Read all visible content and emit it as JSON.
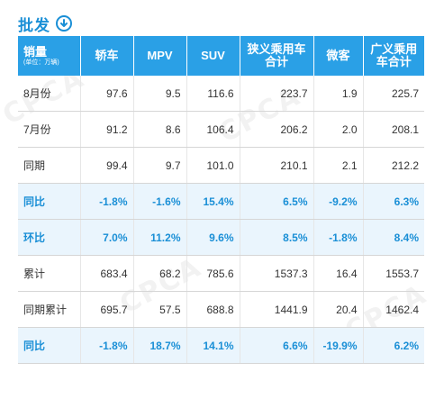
{
  "title": "批发",
  "watermark": "CPCA",
  "headers": [
    {
      "main": "销量",
      "unit": "(单位：万辆)"
    },
    {
      "main": "轿车"
    },
    {
      "main": "MPV"
    },
    {
      "main": "SUV"
    },
    {
      "main": "狭义乘用车合计"
    },
    {
      "main": "微客"
    },
    {
      "main": "广义乘用车合计"
    }
  ],
  "rows": [
    {
      "label": "8月份",
      "values": [
        "97.6",
        "9.5",
        "116.6",
        "223.7",
        "1.9",
        "225.7"
      ],
      "highlight": false
    },
    {
      "label": "7月份",
      "values": [
        "91.2",
        "8.6",
        "106.4",
        "206.2",
        "2.0",
        "208.1"
      ],
      "highlight": false
    },
    {
      "label": "同期",
      "values": [
        "99.4",
        "9.7",
        "101.0",
        "210.1",
        "2.1",
        "212.2"
      ],
      "highlight": false
    },
    {
      "label": "同比",
      "values": [
        "-1.8%",
        "-1.6%",
        "15.4%",
        "6.5%",
        "-9.2%",
        "6.3%"
      ],
      "highlight": true
    },
    {
      "label": "环比",
      "values": [
        "7.0%",
        "11.2%",
        "9.6%",
        "8.5%",
        "-1.8%",
        "8.4%"
      ],
      "highlight": true
    },
    {
      "label": "累计",
      "values": [
        "683.4",
        "68.2",
        "785.6",
        "1537.3",
        "16.4",
        "1553.7"
      ],
      "highlight": false
    },
    {
      "label": "同期累计",
      "values": [
        "695.7",
        "57.5",
        "688.8",
        "1441.9",
        "20.4",
        "1462.4"
      ],
      "highlight": false
    },
    {
      "label": "同比",
      "values": [
        "-1.8%",
        "18.7%",
        "14.1%",
        "6.6%",
        "-19.9%",
        "6.2%"
      ],
      "highlight": true
    }
  ],
  "colors": {
    "accent": "#2aa0e6",
    "highlight_text": "#1a8fd6",
    "highlight_bg": "#eaf5fd"
  }
}
